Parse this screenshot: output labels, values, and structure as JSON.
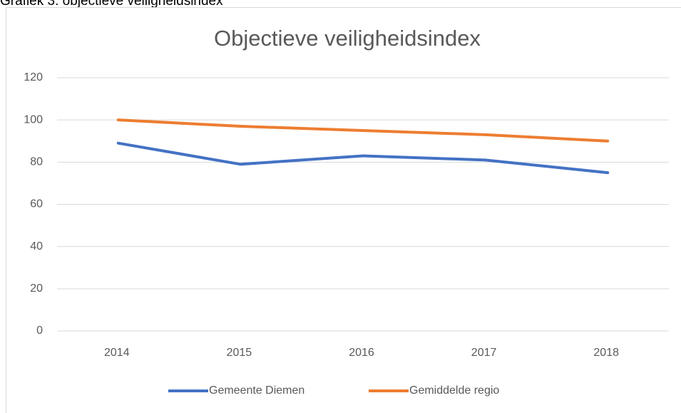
{
  "caption": "Grafiek 3: objectieve veiligheidsindex",
  "chart_data": {
    "type": "line",
    "title": "Objectieve veiligheidsindex",
    "categories": [
      "2014",
      "2015",
      "2016",
      "2017",
      "2018"
    ],
    "series": [
      {
        "name": "Gemeente Diemen",
        "color": "#4472c4",
        "values": [
          89,
          79,
          83,
          81,
          75
        ]
      },
      {
        "name": "Gemiddelde regio",
        "color": "#ed7d31",
        "values": [
          100,
          97,
          95,
          93,
          90
        ]
      }
    ],
    "ylim": [
      0,
      120
    ],
    "yticks": [
      0,
      20,
      40,
      60,
      80,
      100,
      120
    ],
    "grid": true,
    "legend": "bottom"
  }
}
